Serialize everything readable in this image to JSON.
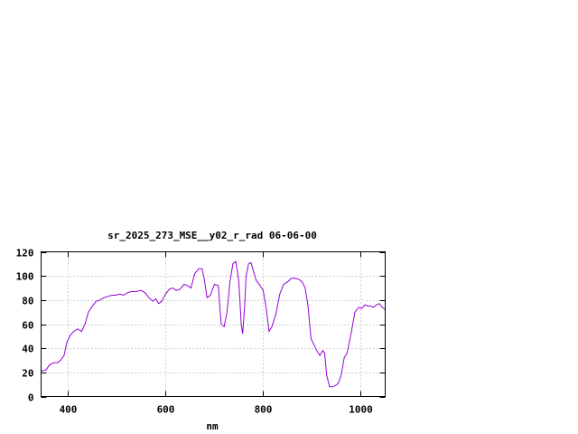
{
  "chart_data": {
    "type": "line",
    "title": "sr_2025_273_MSE__y02_r_rad 06-06-00",
    "xlabel": "nm",
    "ylabel": "",
    "xlim": [
      345,
      1050
    ],
    "ylim": [
      0,
      120
    ],
    "x_ticks": [
      400,
      600,
      800,
      1000
    ],
    "y_ticks": [
      0,
      20,
      40,
      60,
      80,
      100,
      120
    ],
    "grid": true,
    "line_color": "#9400d3",
    "series": [
      {
        "x": [
          345,
          355,
          362,
          370,
          378,
          385,
          392,
          398,
          405,
          412,
          420,
          428,
          435,
          442,
          450,
          458,
          466,
          474,
          482,
          490,
          498,
          506,
          514,
          522,
          530,
          540,
          550,
          558,
          566,
          574,
          580,
          586,
          592,
          600,
          608,
          615,
          622,
          630,
          638,
          645,
          652,
          660,
          668,
          675,
          680,
          685,
          692,
          700,
          708,
          714,
          720,
          726,
          732,
          738,
          744,
          750,
          755,
          758,
          762,
          765,
          770,
          775,
          780,
          786,
          792,
          800,
          806,
          812,
          818,
          826,
          834,
          842,
          850,
          858,
          866,
          874,
          880,
          886,
          892,
          898,
          904,
          910,
          916,
          922,
          926,
          930,
          936,
          942,
          948,
          954,
          960,
          966,
          972,
          980,
          988,
          996,
          1002,
          1008,
          1014,
          1020,
          1026,
          1032,
          1038,
          1044,
          1050
        ],
        "y": [
          21,
          22,
          26,
          28,
          28,
          30,
          34,
          45,
          51,
          54,
          56,
          54,
          60,
          70,
          75,
          79,
          80,
          82,
          83,
          84,
          84,
          85,
          84,
          86,
          87,
          87,
          88,
          86,
          82,
          79,
          81,
          77,
          79,
          85,
          89,
          90,
          88,
          89,
          93,
          92,
          90,
          102,
          106,
          106,
          96,
          82,
          84,
          93,
          92,
          60,
          58,
          70,
          95,
          110,
          112,
          96,
          60,
          52,
          75,
          100,
          110,
          111,
          104,
          96,
          93,
          88,
          74,
          54,
          58,
          68,
          85,
          93,
          95,
          98,
          98,
          97,
          95,
          90,
          75,
          48,
          43,
          38,
          34,
          38,
          36,
          18,
          8,
          8,
          9,
          11,
          18,
          32,
          36,
          52,
          70,
          74,
          73,
          76,
          75,
          75,
          74,
          76,
          77,
          74,
          72
        ]
      }
    ]
  }
}
